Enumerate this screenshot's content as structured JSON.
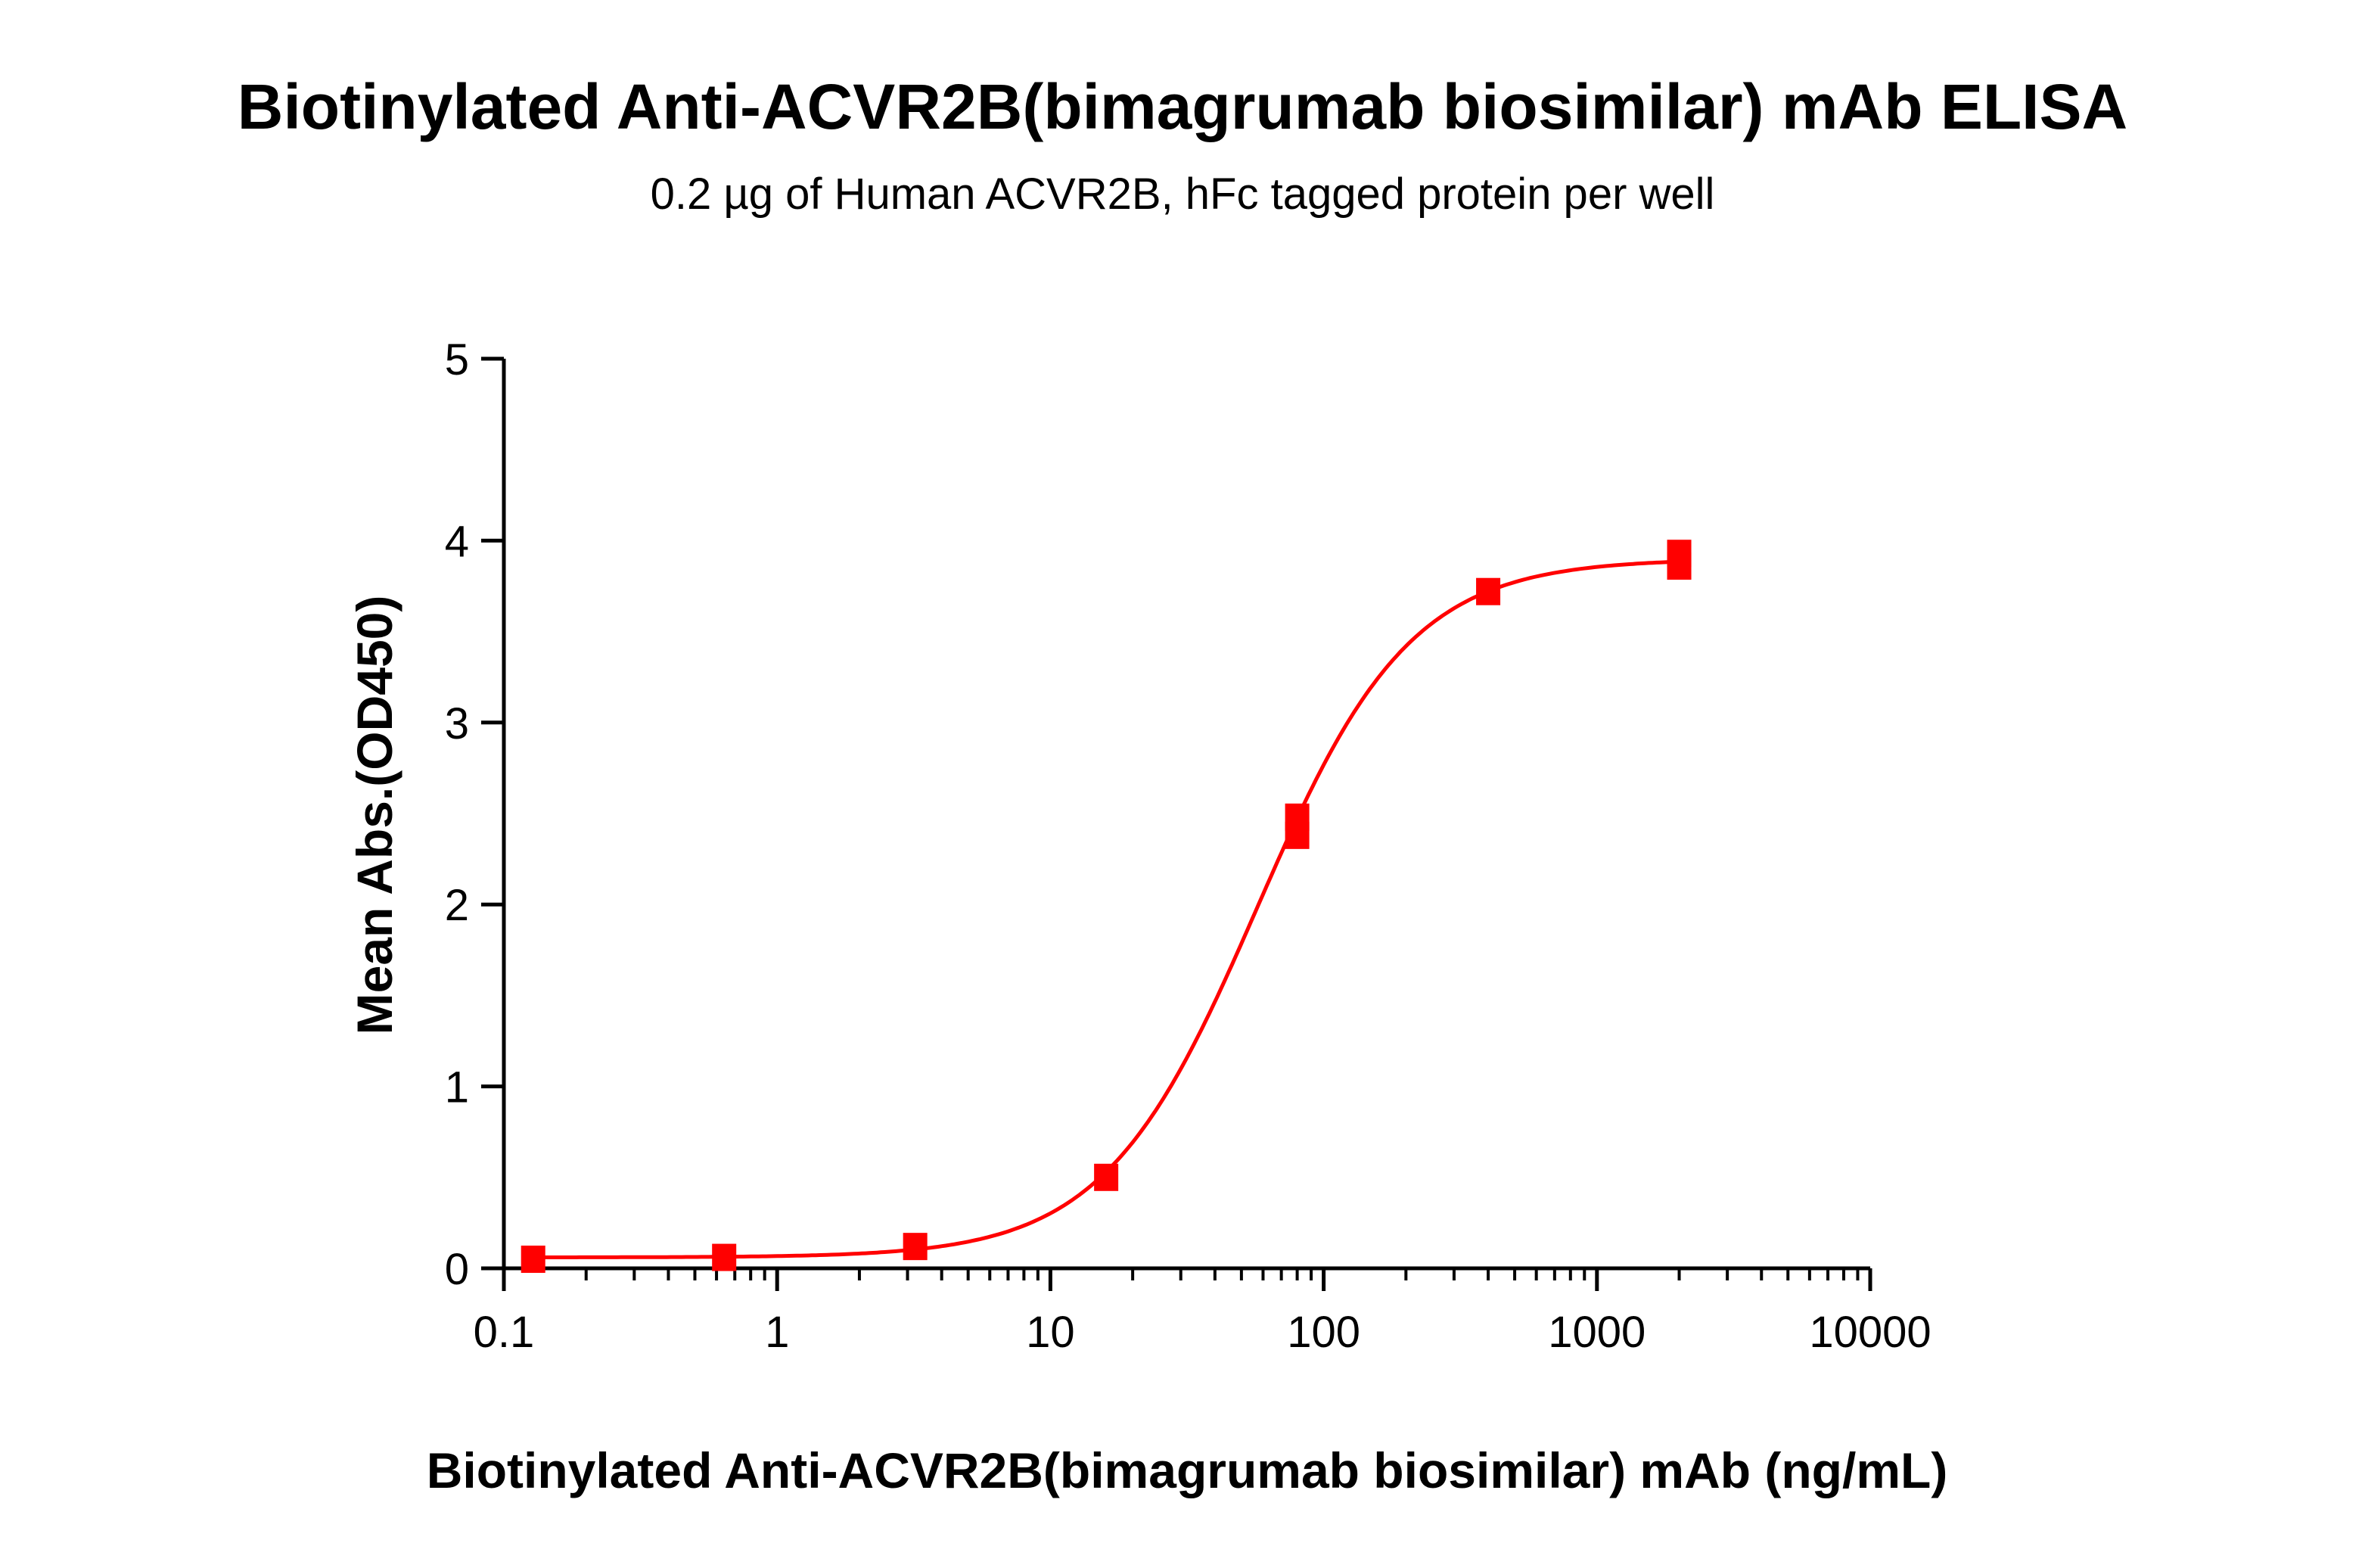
{
  "chart_data": {
    "type": "scatter",
    "title": "Biotinylated Anti-ACVR2B(bimagrumab biosimilar) mAb ELISA",
    "subtitle": "0.2 µg of Human ACVR2B, hFc tagged protein per well",
    "xlabel": "Biotinylated Anti-ACVR2B(bimagrumab biosimilar) mAb (ng/mL)",
    "ylabel": "Mean Abs.(OD450)",
    "x_scale": "log",
    "xlim": [
      0.1,
      10000
    ],
    "ylim": [
      0,
      5
    ],
    "x_ticks": [
      "0.1",
      "1",
      "10",
      "100",
      "1000",
      "10000"
    ],
    "y_ticks": [
      "0",
      "1",
      "2",
      "3",
      "4",
      "5"
    ],
    "grid": false,
    "color": "#ff0000",
    "marker": "square",
    "fit": "four-parameter logistic curve",
    "series": [
      {
        "x": [
          0.128,
          0.64,
          3.2,
          16,
          80,
          80,
          400,
          2000,
          2000
        ],
        "y": [
          0.05,
          0.06,
          0.12,
          0.5,
          2.48,
          2.38,
          3.72,
          3.93,
          3.86
        ]
      }
    ]
  }
}
